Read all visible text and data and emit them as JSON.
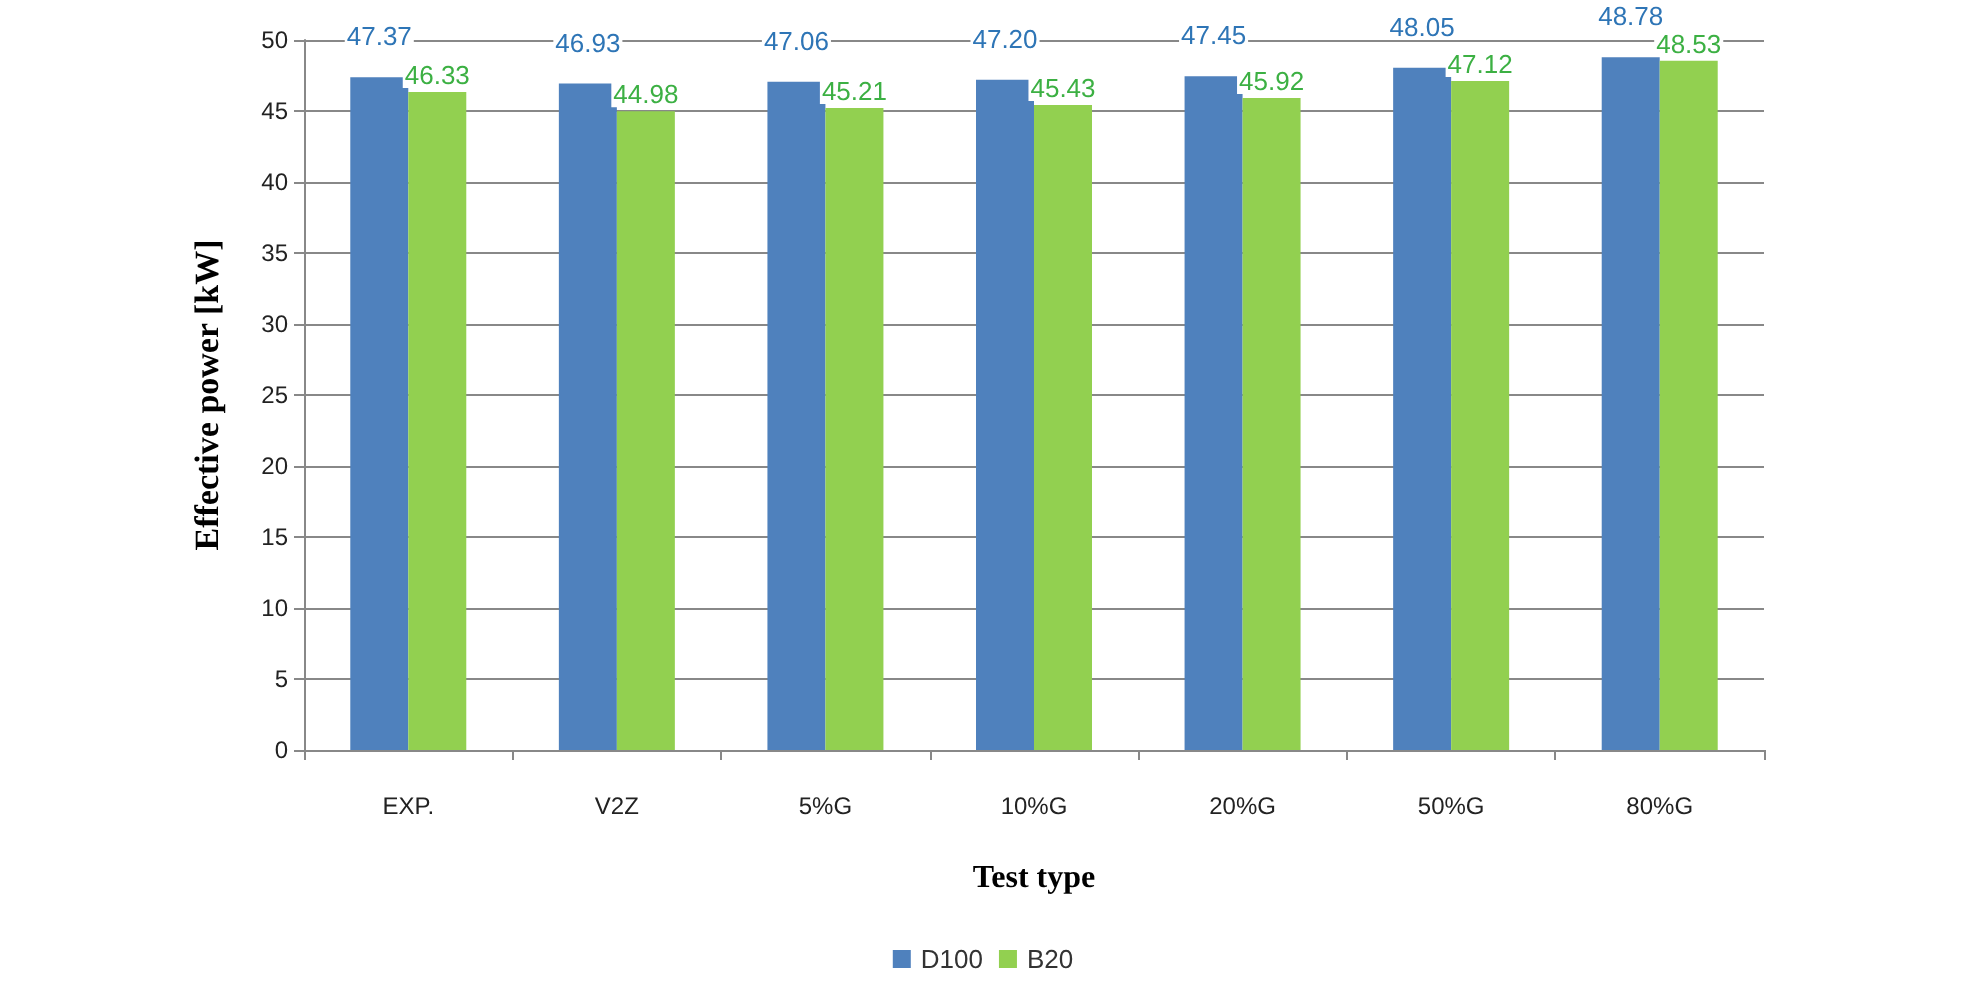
{
  "chart_data": {
    "type": "bar",
    "xlabel": "Test type",
    "ylabel": "Effective power [kW]",
    "categories": [
      "EXP.",
      "V2Z",
      "5%G",
      "10%G",
      "20%G",
      "50%G",
      "80%G"
    ],
    "series": [
      {
        "name": "D100",
        "color": "#4f81bd",
        "values": [
          47.37,
          46.93,
          47.06,
          47.2,
          47.45,
          48.05,
          48.78
        ],
        "value_labels": [
          "47.37",
          "46.93",
          "47.06",
          "47.20",
          "47.45",
          "48.05",
          "48.78"
        ]
      },
      {
        "name": "B20",
        "color": "#92d050",
        "values": [
          46.33,
          44.98,
          45.21,
          45.43,
          45.92,
          47.12,
          48.53
        ],
        "value_labels": [
          "46.33",
          "44.98",
          "45.21",
          "45.43",
          "45.92",
          "47.12",
          "48.53"
        ]
      }
    ],
    "ylim": [
      0,
      50
    ],
    "yticks": [
      0,
      5,
      10,
      15,
      20,
      25,
      30,
      35,
      40,
      45,
      50
    ],
    "grid": "y",
    "legend": "bottom"
  }
}
